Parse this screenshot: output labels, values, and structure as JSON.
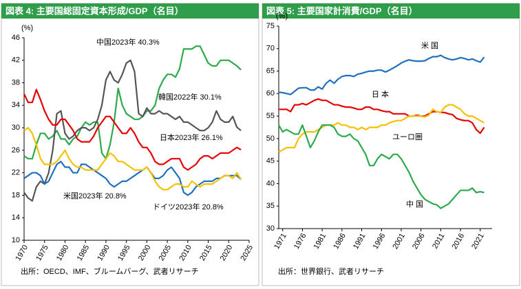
{
  "chart_data": [
    {
      "type": "line",
      "title": "図表 4: 主要国総固定資本形成/GDP（名目）",
      "y_label": "(%)",
      "source": "出所：OECD、IMF、ブルームバーグ、武者リサーチ",
      "x": [
        1970,
        1971,
        1972,
        1973,
        1974,
        1975,
        1976,
        1977,
        1978,
        1979,
        1980,
        1981,
        1982,
        1983,
        1984,
        1985,
        1986,
        1987,
        1988,
        1989,
        1990,
        1991,
        1992,
        1993,
        1994,
        1995,
        1996,
        1997,
        1998,
        1999,
        2000,
        2001,
        2002,
        2003,
        2004,
        2005,
        2006,
        2007,
        2008,
        2009,
        2010,
        2011,
        2012,
        2013,
        2014,
        2015,
        2016,
        2017,
        2018,
        2019,
        2020,
        2021,
        2022,
        2023
      ],
      "xlim": [
        1970,
        2025
      ],
      "xticks": [
        1970,
        1975,
        1980,
        1985,
        1990,
        1995,
        2000,
        2005,
        2010,
        2015,
        2020,
        2025
      ],
      "ylim": [
        10,
        46
      ],
      "yticks": [
        10,
        14,
        18,
        22,
        26,
        30,
        34,
        38,
        42,
        46
      ],
      "annotations": [
        "中国2023年 40.3%",
        "韓国2022年 30.1%",
        "日本2023年 26.1%",
        "米国2023年 20.8%",
        "ドイツ2023年 20.8%"
      ],
      "series": [
        {
          "name": "中国",
          "color": "#2ca94a",
          "values": [
            25,
            24.5,
            24.5,
            27,
            29,
            29,
            28,
            28.5,
            29.5,
            28,
            28,
            27,
            28,
            28.5,
            30,
            31,
            30.5,
            31,
            31,
            25.5,
            24.5,
            27,
            31,
            37,
            34,
            32.5,
            32,
            31.5,
            31.5,
            32,
            33,
            33,
            34,
            37,
            38.5,
            39.5,
            39.5,
            39,
            40.5,
            44,
            44,
            44,
            44.5,
            44.5,
            43,
            41.5,
            41,
            41,
            42,
            42,
            42,
            41.5,
            41,
            40.3
          ]
        },
        {
          "name": "韓国",
          "color": "#555555",
          "values": [
            18.5,
            17.5,
            17,
            19.5,
            20.5,
            20,
            22,
            26,
            32.5,
            33,
            29,
            28,
            28.5,
            29.5,
            30,
            30,
            29.5,
            30,
            31.5,
            34,
            38.5,
            40,
            38.5,
            38,
            39.5,
            41.5,
            42,
            40,
            32.5,
            32,
            33.5,
            32.5,
            32.5,
            33,
            32.5,
            32.5,
            32,
            31.5,
            32,
            31,
            31,
            30.5,
            30,
            29.5,
            29.5,
            30,
            31,
            33,
            31.5,
            31,
            31,
            32,
            30.1,
            29.5
          ]
        },
        {
          "name": "日本",
          "color": "#e60000",
          "values": [
            36,
            34.5,
            34.5,
            36.8,
            35,
            33,
            31.5,
            30.5,
            30.5,
            31.5,
            31.5,
            30.5,
            29.5,
            28,
            27.5,
            27.5,
            27.5,
            28.5,
            30,
            31,
            32,
            32,
            31,
            30,
            29,
            29,
            30,
            29,
            27.5,
            26.5,
            26.5,
            25.5,
            24,
            23.5,
            23.5,
            24,
            24.5,
            24.5,
            24.5,
            23,
            22.5,
            23,
            23.5,
            24.5,
            25,
            25,
            24.5,
            25,
            25.5,
            25.5,
            25.5,
            26,
            26.5,
            26.1
          ]
        },
        {
          "name": "米国",
          "color": "#1f6fc0",
          "values": [
            21,
            21.5,
            22,
            22,
            21.5,
            20,
            20.5,
            22,
            23.5,
            24,
            23,
            23,
            22,
            22,
            23.5,
            23.5,
            23,
            22.5,
            22,
            21.5,
            21,
            20,
            19.5,
            20,
            20.5,
            20.5,
            21,
            21.5,
            22,
            22.5,
            23,
            22,
            21,
            21,
            21.5,
            22.5,
            23,
            22,
            21,
            18.5,
            18,
            18.5,
            19.5,
            20,
            20.5,
            20.5,
            20.5,
            21,
            21,
            21.5,
            21.5,
            21.5,
            21.5,
            20.8
          ]
        },
        {
          "name": "ドイツ",
          "color": "#f5c000",
          "values": [
            29.5,
            30,
            29,
            27,
            24.5,
            23.5,
            23.5,
            23.5,
            24,
            25,
            26,
            24.5,
            23.5,
            23,
            23,
            22.5,
            22.5,
            22.5,
            22.5,
            23.5,
            24.5,
            25.5,
            25,
            24,
            24,
            23.5,
            23,
            22.5,
            22.5,
            22.5,
            23,
            22,
            20.5,
            19.5,
            19,
            19,
            19.5,
            20,
            20,
            19.5,
            19.5,
            20.5,
            20,
            19.5,
            20,
            20,
            20,
            20.5,
            21,
            21.5,
            21.5,
            21,
            22,
            20.8
          ]
        }
      ]
    },
    {
      "type": "line",
      "title": "図表 5: 主要国家計消費/GDP（名目）",
      "y_label": "(%)",
      "source": "出所：世界銀行、武者リサーチ",
      "x": [
        1970,
        1971,
        1972,
        1973,
        1974,
        1975,
        1976,
        1977,
        1978,
        1979,
        1980,
        1981,
        1982,
        1983,
        1984,
        1985,
        1986,
        1987,
        1988,
        1989,
        1990,
        1991,
        1992,
        1993,
        1994,
        1995,
        1996,
        1997,
        1998,
        1999,
        2000,
        2001,
        2002,
        2003,
        2004,
        2005,
        2006,
        2007,
        2008,
        2009,
        2010,
        2011,
        2012,
        2013,
        2014,
        2015,
        2016,
        2017,
        2018,
        2019,
        2020,
        2021,
        2022
      ],
      "xlim": [
        1970,
        2024
      ],
      "xticks": [
        1971,
        1976,
        1981,
        1986,
        1991,
        1996,
        2001,
        2006,
        2011,
        2016,
        2021
      ],
      "ylim": [
        30,
        75
      ],
      "yticks": [
        30,
        35,
        40,
        45,
        50,
        55,
        60,
        65,
        70,
        75
      ],
      "annotations": [
        "米 国",
        "日 本",
        "ユーロ圏",
        "中 国"
      ],
      "series": [
        {
          "name": "米国",
          "color": "#1f6fc0",
          "values": [
            60.3,
            60.2,
            60,
            59.8,
            60.5,
            61.2,
            61.3,
            61.3,
            60.8,
            60.8,
            61.5,
            61,
            62.3,
            63,
            62.3,
            63.2,
            63.8,
            64,
            64,
            63.8,
            64.3,
            64.5,
            64.8,
            65,
            65,
            65.2,
            65.2,
            64.8,
            65.2,
            65.7,
            66.2,
            66.8,
            67.2,
            67.5,
            67.3,
            67.2,
            67.2,
            67.3,
            67.8,
            68.2,
            68.2,
            68.5,
            68,
            67.7,
            67.5,
            67.7,
            68,
            67.8,
            67.5,
            67.7,
            67.3,
            67,
            68.1
          ]
        },
        {
          "name": "日本",
          "color": "#e60000",
          "values": [
            56.5,
            56.5,
            56.5,
            56,
            57.5,
            57.5,
            57.8,
            57.5,
            58,
            58.5,
            58.8,
            58.5,
            58.5,
            58,
            57.5,
            57.5,
            57.2,
            57,
            57,
            56.8,
            56.5,
            56.5,
            57,
            57,
            56.5,
            56.5,
            56.2,
            56,
            56,
            55.5,
            55.5,
            55.5,
            55.5,
            55,
            55,
            55.2,
            55,
            55,
            55.5,
            56,
            56,
            55.8,
            55.8,
            55.5,
            55.3,
            54.5,
            54.2,
            54,
            54,
            53.5,
            52,
            51.2,
            52.5
          ]
        },
        {
          "name": "ユーロ圏",
          "color": "#f5c000",
          "values": [
            47,
            47.5,
            48,
            48,
            48,
            50,
            51,
            51.5,
            51.5,
            51.5,
            52,
            52.5,
            53,
            53,
            53,
            53.5,
            53,
            53,
            52.5,
            52.5,
            52,
            52.5,
            52,
            52.5,
            52.5,
            52.5,
            53,
            53,
            53.5,
            53.8,
            54,
            54,
            54.5,
            55,
            55,
            55,
            55,
            54.8,
            55.2,
            56.5,
            56,
            55.8,
            57,
            57.5,
            57.5,
            57,
            56.5,
            55.5,
            55,
            55,
            54.5,
            54,
            53.5
          ]
        },
        {
          "name": "中国",
          "color": "#2ca94a",
          "values": [
            53,
            51.5,
            52,
            51.5,
            51,
            51,
            53,
            50.5,
            48,
            49.5,
            51.5,
            53,
            53,
            53,
            52.5,
            51,
            50.5,
            50.5,
            51,
            50,
            49.5,
            48,
            46.5,
            44,
            44,
            45.5,
            46.5,
            46,
            45.5,
            46.5,
            46.5,
            45.5,
            44,
            42.5,
            40.5,
            39,
            37.5,
            36.5,
            36,
            35.5,
            35.3,
            34.5,
            35,
            35.5,
            36.5,
            37.5,
            38.5,
            38.5,
            38.5,
            39,
            38,
            38.2,
            38
          ]
        }
      ]
    }
  ]
}
